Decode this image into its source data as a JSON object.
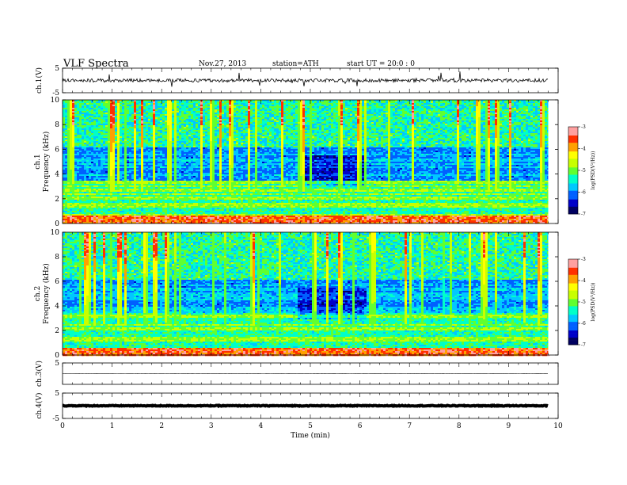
{
  "header": {
    "title": "VLF  Spectra",
    "date": "Nov.27, 2013",
    "station": "station=ATH",
    "start": "start  UT  =   20:0  : 0"
  },
  "colors": {
    "spectrogram_scale": [
      "#000060",
      "#0000c8",
      "#0060ff",
      "#00c8ff",
      "#00ffc8",
      "#60ff30",
      "#c8ff00",
      "#ffff00",
      "#ffa000",
      "#ff3000",
      "#ffa0a0",
      "#ffffff"
    ],
    "waveform": "#000000"
  },
  "chart_data": [
    {
      "type": "line",
      "ylabel": "ch.1(V)",
      "ylim": [
        -5,
        5
      ],
      "yticks": [
        "5",
        "-5"
      ],
      "xlim": [
        0,
        10
      ],
      "signal": "noisy waveform around 0 V with many spikes"
    },
    {
      "type": "heatmap",
      "ylabel": [
        "ch.1",
        "Frequency  (kHz)"
      ],
      "ylim": [
        0,
        10
      ],
      "yticks": [
        "0",
        "2",
        "4",
        "6",
        "8",
        "10"
      ],
      "xlim": [
        0,
        10
      ],
      "colorbar": {
        "label": "log(PSD(V²/Hz))",
        "range": [
          -7,
          -3
        ],
        "ticks": [
          "-3",
          "-4",
          "-5",
          "-6",
          "-7"
        ]
      }
    },
    {
      "type": "heatmap",
      "ylabel": [
        "ch.2",
        "Frequency  (kHz)"
      ],
      "ylim": [
        0,
        10
      ],
      "yticks": [
        "0",
        "2",
        "4",
        "6",
        "8",
        "10"
      ],
      "xlim": [
        0,
        10
      ],
      "colorbar": {
        "label": "log(PSD(V²/Hz))",
        "range": [
          -7,
          -3
        ],
        "ticks": [
          "-3",
          "-4",
          "-5",
          "-6",
          "-7"
        ]
      }
    },
    {
      "type": "line",
      "ylabel": "ch.3(V)",
      "ylim": [
        -5,
        5
      ],
      "yticks": [
        "5"
      ],
      "xlim": [
        0,
        10
      ],
      "signal": "flat trace near 0 V"
    },
    {
      "type": "line",
      "ylabel": "ch.4(V)",
      "ylim": [
        -5,
        5
      ],
      "yticks": [
        "5",
        "-5"
      ],
      "xlim": [
        0,
        10
      ],
      "signal": "thick flat trace near 0 V"
    }
  ],
  "xaxis": {
    "label": "Time  (min)",
    "range": [
      0,
      10
    ],
    "data_end": 9.8,
    "ticks": [
      "0",
      "1",
      "2",
      "3",
      "4",
      "5",
      "6",
      "7",
      "8",
      "9",
      "10"
    ]
  }
}
